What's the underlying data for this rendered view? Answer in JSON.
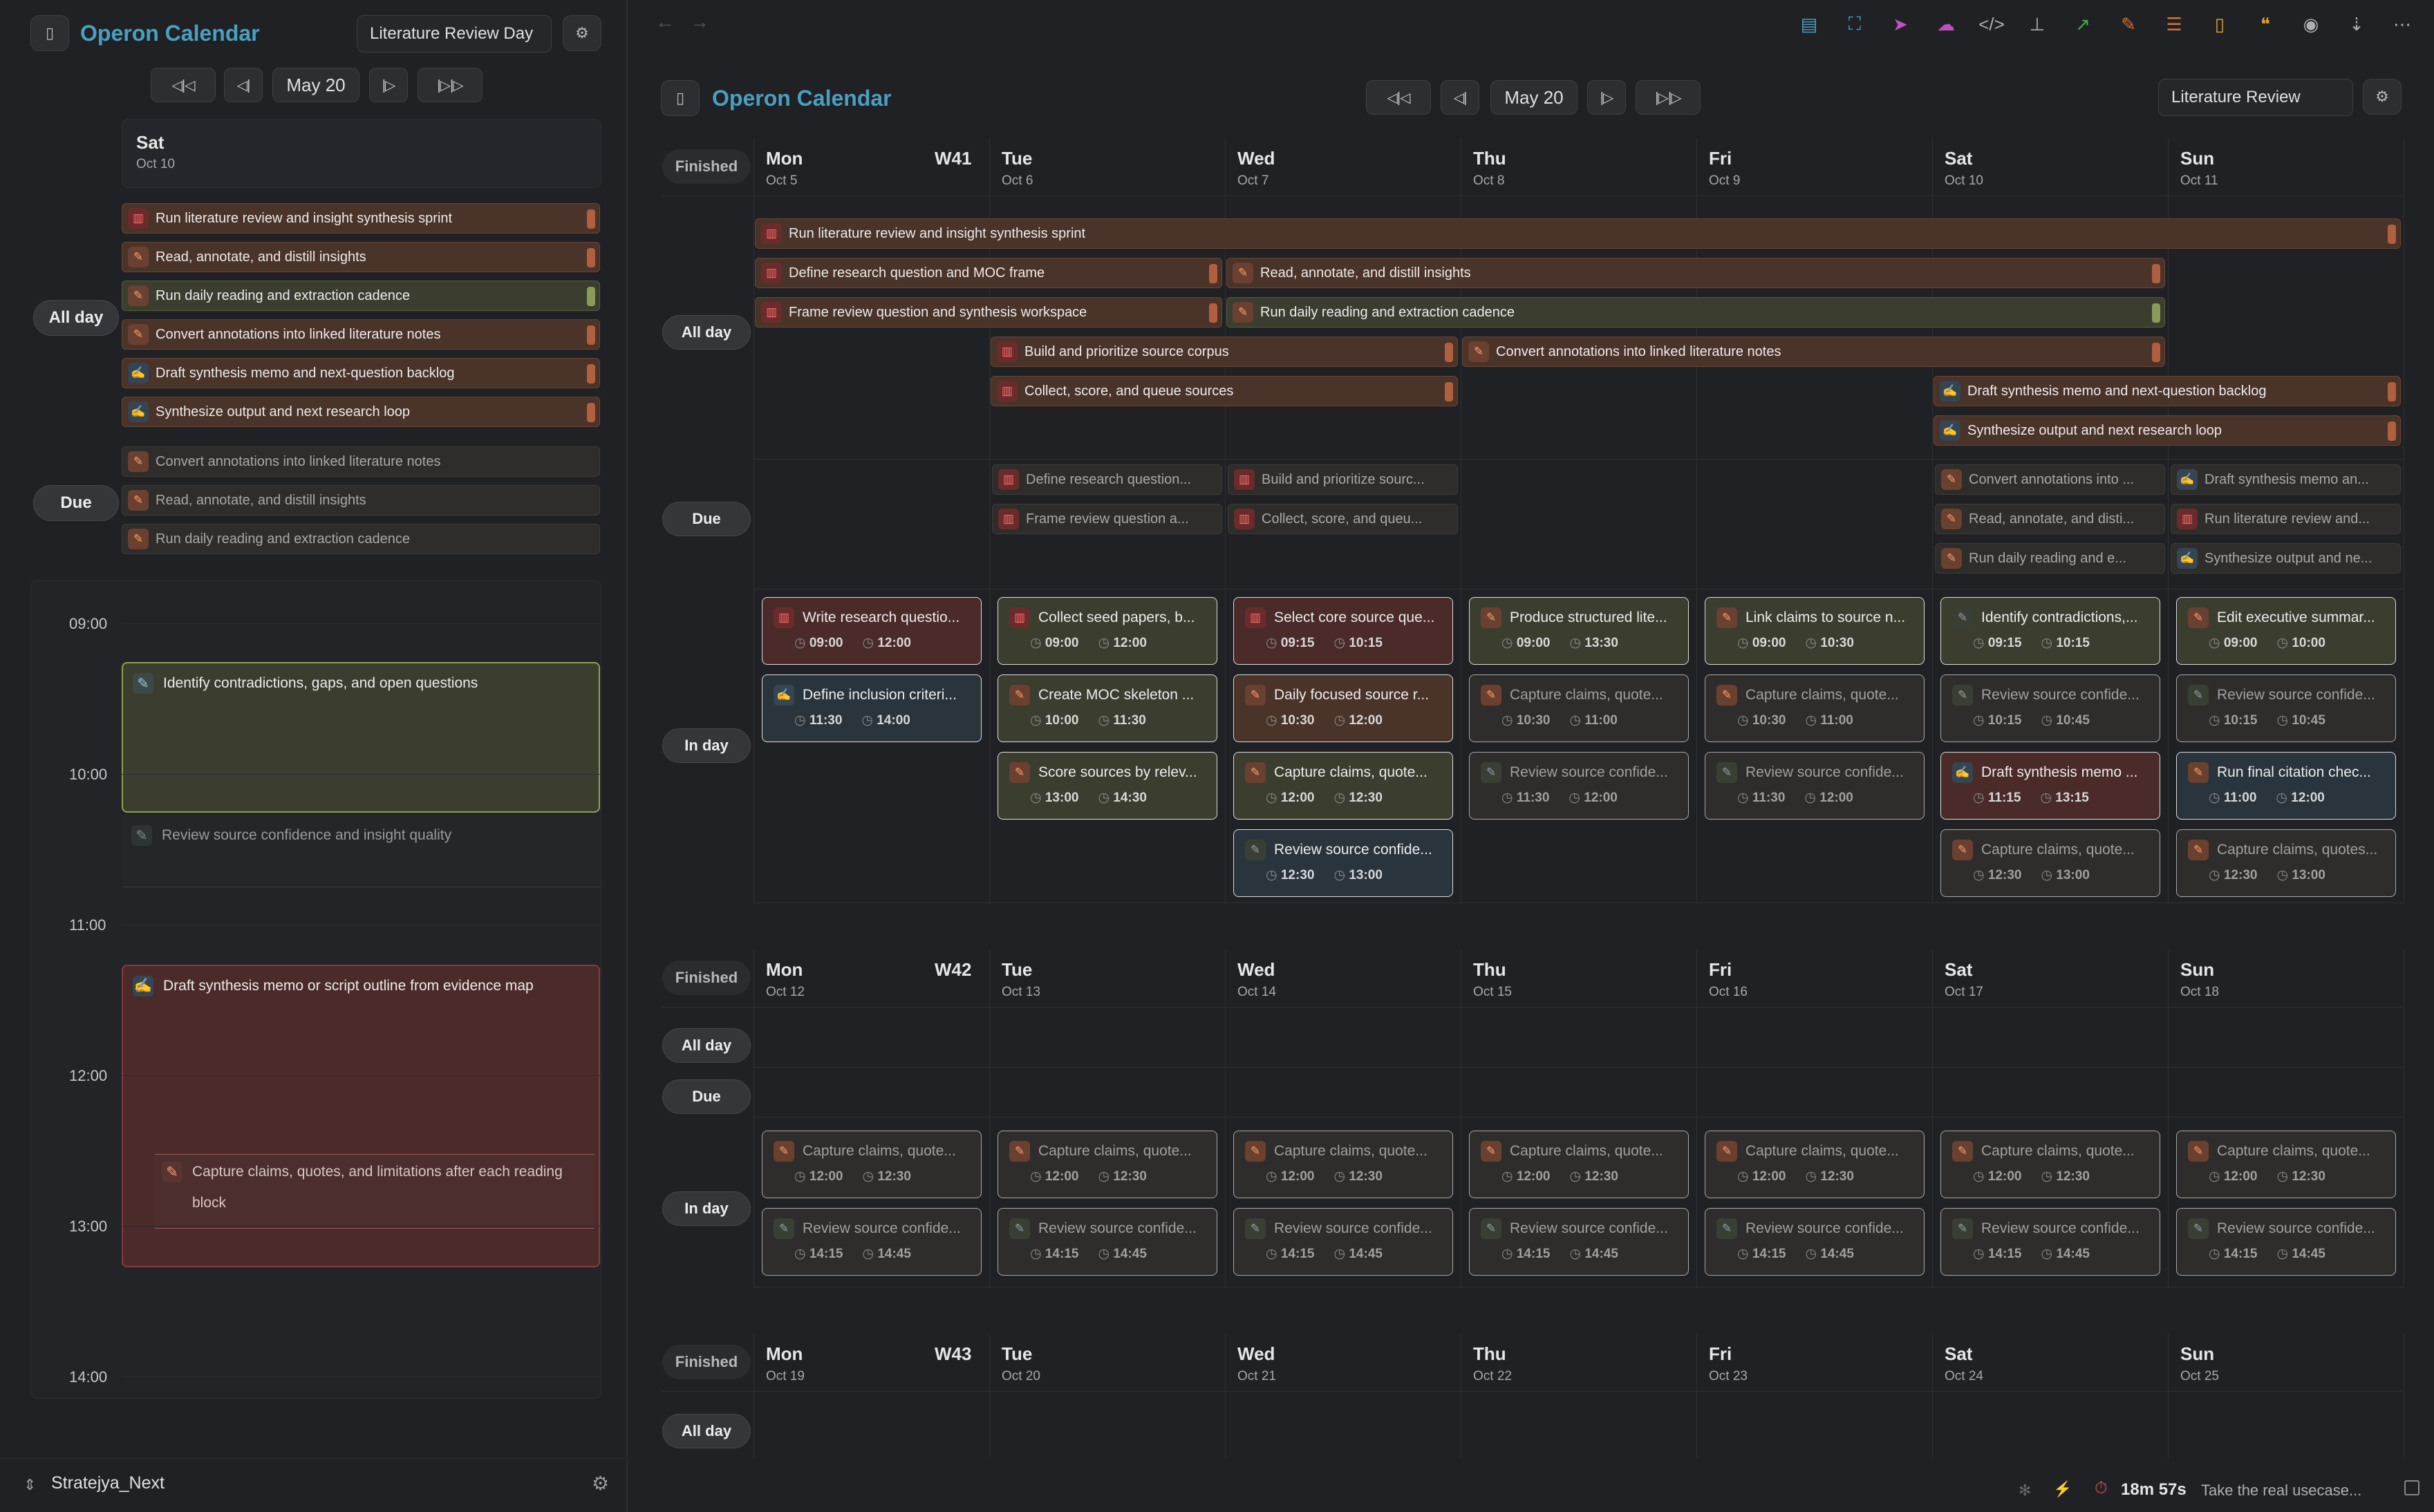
{
  "app": {
    "title": "Operon Calendar"
  },
  "left": {
    "preset": "Literature Review Day",
    "date_label": "May 20",
    "day_name": "Sat",
    "day_date": "Oct 10",
    "allday_label": "All day",
    "due_label": "Due",
    "allday": [
      {
        "t": "Run literature review and insight synthesis sprint",
        "c": "brown",
        "i": "book-icon",
        "ic": "r"
      },
      {
        "t": "Read, annotate, and distill insights",
        "c": "brown",
        "i": "pen-icon",
        "ic": "o"
      },
      {
        "t": "Run daily reading and extraction cadence",
        "c": "olive",
        "i": "pen-icon",
        "ic": "o"
      },
      {
        "t": "Convert annotations into linked literature notes",
        "c": "brown",
        "i": "pen-icon",
        "ic": "o"
      },
      {
        "t": "Draft synthesis memo and next-question backlog",
        "c": "brown",
        "i": "note-icon",
        "ic": "b"
      },
      {
        "t": "Synthesize output and next research loop",
        "c": "brown",
        "i": "note-icon",
        "ic": "b"
      }
    ],
    "due": [
      {
        "t": "Convert annotations into linked literature notes",
        "c": "dim",
        "i": "pen-icon",
        "ic": "o"
      },
      {
        "t": "Read, annotate, and distill insights",
        "c": "dim",
        "i": "pen-icon",
        "ic": "o"
      },
      {
        "t": "Run daily reading and extraction cadence",
        "c": "dim",
        "i": "pen-icon",
        "ic": "o"
      }
    ],
    "times": [
      "09:00",
      "10:00",
      "11:00",
      "12:00",
      "13:00",
      "14:00"
    ],
    "events": [
      {
        "t": "Identify contradictions, gaps, and open questions"
      },
      {
        "t": "Review source confidence and insight quality"
      },
      {
        "t": "Draft synthesis memo or script outline from evidence map"
      },
      {
        "t1": "Capture claims, quotes, and limitations after each reading",
        "t2": "block"
      }
    ],
    "vault": "Stratejya_Next"
  },
  "main": {
    "preset": "Literature Review",
    "date_label": "May 20",
    "finished": "Finished",
    "allday": "All day",
    "due": "Due",
    "inday": "In day",
    "weeks": [
      {
        "label": "W41",
        "days": [
          [
            "Mon",
            "Oct 5"
          ],
          [
            "Tue",
            "Oct 6"
          ],
          [
            "Wed",
            "Oct 7"
          ],
          [
            "Thu",
            "Oct 8"
          ],
          [
            "Fri",
            "Oct 9"
          ],
          [
            "Sat",
            "Oct 10"
          ],
          [
            "Sun",
            "Oct 11"
          ]
        ]
      },
      {
        "label": "W42",
        "days": [
          [
            "Mon",
            "Oct 12"
          ],
          [
            "Tue",
            "Oct 13"
          ],
          [
            "Wed",
            "Oct 14"
          ],
          [
            "Thu",
            "Oct 15"
          ],
          [
            "Fri",
            "Oct 16"
          ],
          [
            "Sat",
            "Oct 17"
          ],
          [
            "Sun",
            "Oct 18"
          ]
        ]
      },
      {
        "label": "W43",
        "days": [
          [
            "Mon",
            "Oct 19"
          ],
          [
            "Tue",
            "Oct 20"
          ],
          [
            "Wed",
            "Oct 21"
          ],
          [
            "Thu",
            "Oct 22"
          ],
          [
            "Fri",
            "Oct 23"
          ],
          [
            "Sat",
            "Oct 24"
          ],
          [
            "Sun",
            "Oct 25"
          ]
        ]
      }
    ],
    "allbars": [
      {
        "t": "Run literature review and insight synthesis sprint",
        "c": "brown",
        "ic": "r",
        "col": 0,
        "span": 7,
        "row": 0
      },
      {
        "t": "Define research question and MOC frame",
        "c": "brown",
        "ic": "r",
        "col": 0,
        "span": 2,
        "row": 1
      },
      {
        "t": "Read, annotate, and distill insights",
        "c": "brown",
        "ic": "o",
        "col": 2,
        "span": 4,
        "row": 1
      },
      {
        "t": "Frame review question and synthesis workspace",
        "c": "brown",
        "ic": "r",
        "col": 0,
        "span": 2,
        "row": 2
      },
      {
        "t": "Run daily reading and extraction cadence",
        "c": "olive",
        "ic": "o",
        "col": 2,
        "span": 4,
        "row": 2
      },
      {
        "t": "Build and prioritize source corpus",
        "c": "brown",
        "ic": "r",
        "col": 1,
        "span": 2,
        "row": 3
      },
      {
        "t": "Convert annotations into linked literature notes",
        "c": "brown",
        "ic": "o",
        "col": 3,
        "span": 3,
        "row": 3
      },
      {
        "t": "Collect, score, and queue sources",
        "c": "brown",
        "ic": "r",
        "col": 1,
        "span": 2,
        "row": 4
      },
      {
        "t": "Draft synthesis memo and next-question backlog",
        "c": "brown",
        "ic": "b",
        "col": 5,
        "span": 2,
        "row": 4
      },
      {
        "t": "Synthesize output and next research loop",
        "c": "brown",
        "ic": "b",
        "col": 5,
        "span": 2,
        "row": 5
      }
    ],
    "duebars": [
      {
        "t": "Define research question...",
        "ic": "r",
        "col": 1,
        "row": 0
      },
      {
        "t": "Frame review question a...",
        "ic": "r",
        "col": 1,
        "row": 1
      },
      {
        "t": "Build and prioritize sourc...",
        "ic": "r",
        "col": 2,
        "row": 0
      },
      {
        "t": "Collect, score, and queu...",
        "ic": "r",
        "col": 2,
        "row": 1
      },
      {
        "t": "Convert annotations into ...",
        "ic": "o",
        "col": 5,
        "row": 0
      },
      {
        "t": "Read, annotate, and disti...",
        "ic": "o",
        "col": 5,
        "row": 1
      },
      {
        "t": "Run daily reading and e...",
        "ic": "o",
        "col": 5,
        "row": 2
      },
      {
        "t": "Draft synthesis memo an...",
        "ic": "b",
        "col": 6,
        "row": 0
      },
      {
        "t": "Run literature review and...",
        "ic": "r",
        "col": 6,
        "row": 1
      },
      {
        "t": "Synthesize output and ne...",
        "ic": "b",
        "col": 6,
        "row": 2
      }
    ],
    "w1cards": [
      {
        "t": "Write research questio...",
        "s": "09:00",
        "e": "12:00",
        "c": "red",
        "ic": "r",
        "col": 0,
        "row": 0
      },
      {
        "t": "Define inclusion criteri...",
        "s": "11:30",
        "e": "14:00",
        "c": "blue",
        "ic": "b",
        "col": 0,
        "row": 1
      },
      {
        "t": "Collect seed papers, b...",
        "s": "09:00",
        "e": "12:00",
        "c": "olive",
        "ic": "r",
        "col": 1,
        "row": 0
      },
      {
        "t": "Create MOC skeleton ...",
        "s": "10:00",
        "e": "11:30",
        "c": "olive",
        "ic": "o",
        "col": 1,
        "row": 1
      },
      {
        "t": "Score sources by relev...",
        "s": "13:00",
        "e": "14:30",
        "c": "olive",
        "ic": "o",
        "col": 1,
        "row": 2
      },
      {
        "t": "Select core source que...",
        "s": "09:15",
        "e": "10:15",
        "c": "red",
        "ic": "r",
        "col": 2,
        "row": 0
      },
      {
        "t": "Daily focused source r...",
        "s": "10:30",
        "e": "12:00",
        "c": "brown",
        "ic": "o",
        "col": 2,
        "row": 1
      },
      {
        "t": "Capture claims, quote...",
        "s": "12:00",
        "e": "12:30",
        "c": "olive",
        "ic": "o",
        "col": 2,
        "row": 2
      },
      {
        "t": "Review source confide...",
        "s": "12:30",
        "e": "13:00",
        "c": "blue",
        "ic": "g",
        "col": 2,
        "row": 3
      },
      {
        "t": "Produce structured lite...",
        "s": "09:00",
        "e": "13:30",
        "c": "olive",
        "ic": "o",
        "col": 3,
        "row": 0
      },
      {
        "t": "Capture claims, quote...",
        "s": "10:30",
        "e": "11:00",
        "c": "dim",
        "ic": "o",
        "col": 3,
        "row": 1
      },
      {
        "t": "Review source confide...",
        "s": "11:30",
        "e": "12:00",
        "c": "dim",
        "ic": "g",
        "col": 3,
        "row": 2
      },
      {
        "t": "Link claims to source n...",
        "s": "09:00",
        "e": "10:30",
        "c": "olive",
        "ic": "o",
        "col": 4,
        "row": 0
      },
      {
        "t": "Capture claims, quote...",
        "s": "10:30",
        "e": "11:00",
        "c": "dim",
        "ic": "o",
        "col": 4,
        "row": 1
      },
      {
        "t": "Review source confide...",
        "s": "11:30",
        "e": "12:00",
        "c": "dim",
        "ic": "g",
        "col": 4,
        "row": 2
      },
      {
        "t": "Identify contradictions,...",
        "s": "09:15",
        "e": "10:15",
        "c": "olive",
        "ic": "g",
        "col": 5,
        "row": 0
      },
      {
        "t": "Review source confide...",
        "s": "10:15",
        "e": "10:45",
        "c": "dim",
        "ic": "g",
        "col": 5,
        "row": 1
      },
      {
        "t": "Draft synthesis memo ...",
        "s": "11:15",
        "e": "13:15",
        "c": "red",
        "ic": "b",
        "col": 5,
        "row": 2
      },
      {
        "t": "Capture claims, quote...",
        "s": "12:30",
        "e": "13:00",
        "c": "dim",
        "ic": "o",
        "col": 5,
        "row": 3
      },
      {
        "t": "Edit executive summar...",
        "s": "09:00",
        "e": "10:00",
        "c": "olive",
        "ic": "o",
        "col": 6,
        "row": 0
      },
      {
        "t": "Review source confide...",
        "s": "10:15",
        "e": "10:45",
        "c": "dim",
        "ic": "g",
        "col": 6,
        "row": 1
      },
      {
        "t": "Run final citation chec...",
        "s": "11:00",
        "e": "12:00",
        "c": "blue",
        "ic": "o",
        "col": 6,
        "row": 2
      },
      {
        "t": "Capture claims, quotes...",
        "s": "12:30",
        "e": "13:00",
        "c": "dim",
        "ic": "o",
        "col": 6,
        "row": 3
      }
    ],
    "w2cards": [
      {
        "t": "Capture claims, quote...",
        "s": "12:00",
        "e": "12:30",
        "ic": "o"
      },
      {
        "t": "Review source confide...",
        "s": "14:15",
        "e": "14:45",
        "ic": "g"
      }
    ],
    "w2last": {
      "t": "Capture claims, quotes...",
      "t2": "Review source confide..."
    }
  },
  "status": {
    "timer": "18m 57s",
    "message": "Take the real usecase..."
  }
}
